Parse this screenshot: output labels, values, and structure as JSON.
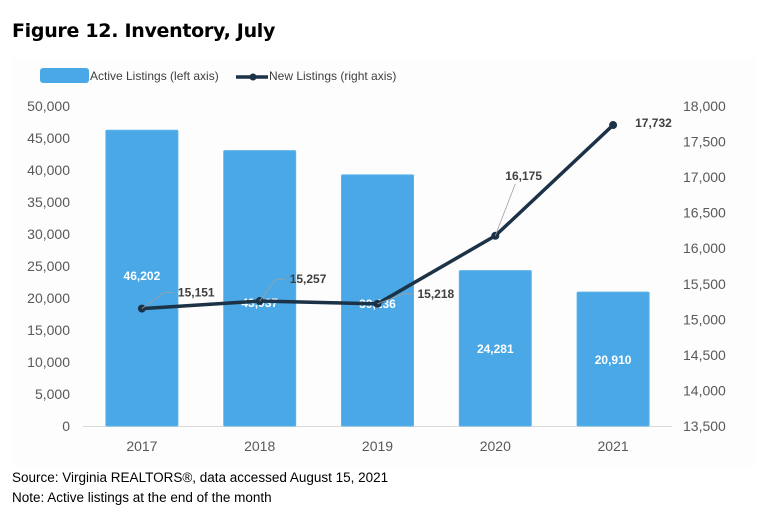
{
  "figure_title": "Figure 12. Inventory, July",
  "source": "Source: Virginia REALTORS®, data accessed August 15, 2021",
  "note": "Note: Active listings at the end of the month",
  "chart_data": {
    "type": "bar+line",
    "title": "Figure 12. Inventory, July",
    "categories": [
      "2017",
      "2018",
      "2019",
      "2020",
      "2021"
    ],
    "series": [
      {
        "name": "Active Listings (left axis)",
        "type": "bar",
        "axis": "left",
        "values": [
          46202,
          43037,
          39236,
          24281,
          20910
        ],
        "labels": [
          "46,202",
          "43,037",
          "39,236",
          "24,281",
          "20,910"
        ],
        "color": "#4aa8e6"
      },
      {
        "name": "New Listings (right axis)",
        "type": "line",
        "axis": "right",
        "values": [
          15151,
          15257,
          15218,
          16175,
          17732
        ],
        "labels": [
          "15,151",
          "15,257",
          "15,218",
          "16,175",
          "17,732"
        ],
        "color": "#1c3246"
      }
    ],
    "left_axis": {
      "ylim": [
        0,
        50000
      ],
      "ticks": [
        "0",
        "5,000",
        "10,000",
        "15,000",
        "20,000",
        "25,000",
        "30,000",
        "35,000",
        "40,000",
        "45,000",
        "50,000"
      ]
    },
    "right_axis": {
      "ylim": [
        13500,
        18000
      ],
      "ticks": [
        "13,500",
        "14,000",
        "14,500",
        "15,000",
        "15,500",
        "16,000",
        "16,500",
        "17,000",
        "17,500",
        "18,000"
      ]
    },
    "legend_position": "top-left",
    "grid": false
  }
}
